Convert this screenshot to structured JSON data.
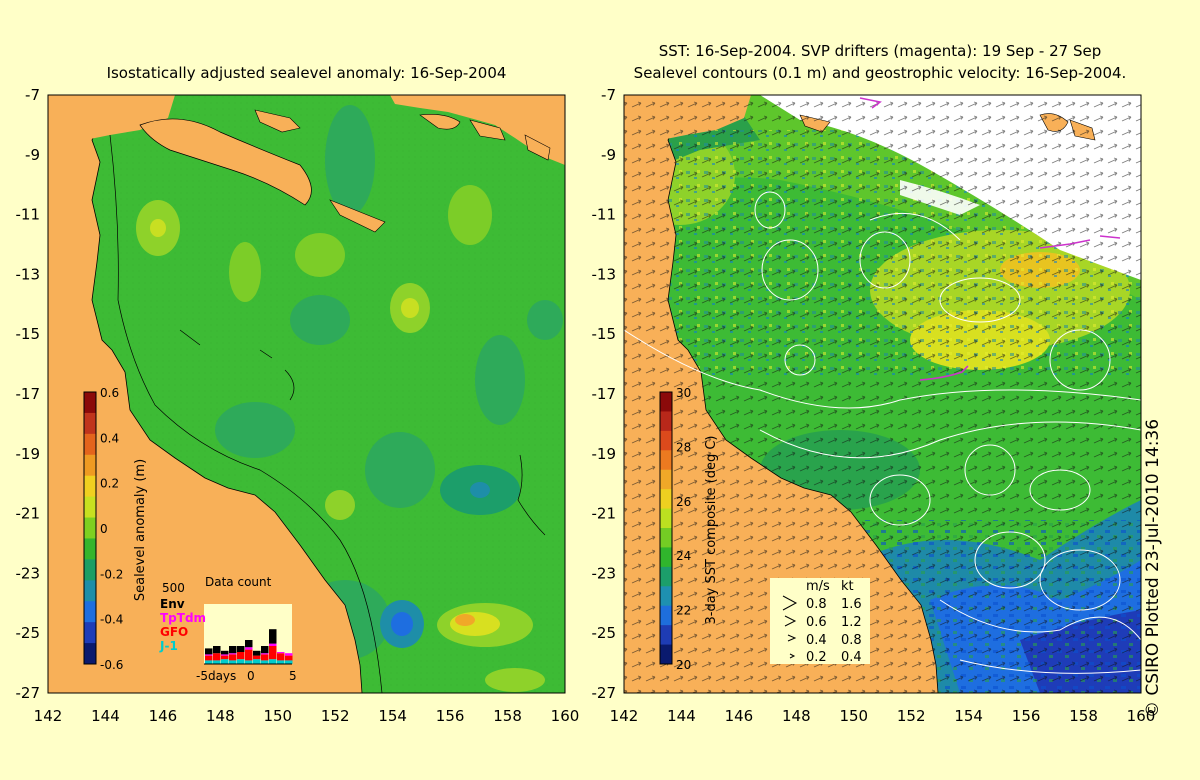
{
  "left_panel": {
    "title": "Isostatically adjusted sealevel anomaly: 16-Sep-2004",
    "colorbar_label": "Sealevel anomaly (m)",
    "colorbar_ticks": [
      "0.6",
      "0.4",
      "0.2",
      "0",
      "-0.2",
      "-0.4",
      "-0.6"
    ],
    "colorbar_colors": [
      "#8b0a0a",
      "#c0341c",
      "#e4641c",
      "#ee9a22",
      "#f0d020",
      "#c8e020",
      "#7ed020",
      "#36b52c",
      "#1c9e64",
      "#1e8ea8",
      "#1e6ee0",
      "#1e3cb8",
      "#0a1a6e"
    ],
    "data_count": {
      "title": "Data count",
      "max_label": "500",
      "legend": [
        {
          "name": "Env",
          "color": "#000000"
        },
        {
          "name": "TpTdm",
          "color": "#ff00ff"
        },
        {
          "name": "GFO",
          "color": "#ff0000"
        },
        {
          "name": "J-1",
          "color": "#00cccc"
        }
      ],
      "x_labels": [
        "-5days",
        "0",
        "5"
      ],
      "bars": [
        {
          "j1": 30,
          "gfo": 40,
          "tp": 10,
          "env": 50
        },
        {
          "j1": 30,
          "gfo": 60,
          "tp": 0,
          "env": 60
        },
        {
          "j1": 40,
          "gfo": 30,
          "tp": 10,
          "env": 30
        },
        {
          "j1": 30,
          "gfo": 50,
          "tp": 10,
          "env": 60
        },
        {
          "j1": 40,
          "gfo": 60,
          "tp": 0,
          "env": 50
        },
        {
          "j1": 30,
          "gfo": 90,
          "tp": 20,
          "env": 60
        },
        {
          "j1": 40,
          "gfo": 30,
          "tp": 0,
          "env": 40
        },
        {
          "j1": 30,
          "gfo": 50,
          "tp": 10,
          "env": 60
        },
        {
          "j1": 40,
          "gfo": 110,
          "tp": 20,
          "env": 120
        },
        {
          "j1": 30,
          "gfo": 60,
          "tp": 10,
          "env": 0
        },
        {
          "j1": 30,
          "gfo": 40,
          "tp": 20,
          "env": 0
        }
      ]
    }
  },
  "right_panel": {
    "title_line1": "SST: 16-Sep-2004. SVP drifters (magenta): 19 Sep - 27 Sep",
    "title_line2": "Sealevel contours (0.1 m) and geostrophic velocity: 16-Sep-2004.",
    "colorbar_label": "3-day SST composite (deg C)",
    "colorbar_ticks": [
      "30",
      "28",
      "26",
      "24",
      "22",
      "20"
    ],
    "colorbar_colors": [
      "#8b0a0a",
      "#b8281a",
      "#dc4a1c",
      "#ec7a20",
      "#f0a828",
      "#eed020",
      "#bce020",
      "#74cc24",
      "#30b52c",
      "#1c9e6a",
      "#1e90b0",
      "#1e6edc",
      "#1e3cb4",
      "#0a1a6e"
    ],
    "velocity_legend": {
      "headers": [
        "m/s",
        "kt"
      ],
      "rows": [
        [
          "0.8",
          "1.6"
        ],
        [
          "0.6",
          "1.2"
        ],
        [
          "0.4",
          "0.8"
        ],
        [
          "0.2",
          "0.4"
        ]
      ]
    }
  },
  "axes": {
    "lat_labels": [
      "-7",
      "-9",
      "-11",
      "-13",
      "-15",
      "-17",
      "-19",
      "-21",
      "-23",
      "-25",
      "-27"
    ],
    "lon_labels": [
      "142",
      "144",
      "146",
      "148",
      "150",
      "152",
      "154",
      "156",
      "158",
      "160"
    ]
  },
  "colors": {
    "background": "#ffffc8",
    "land": "#f8b058",
    "sea_green": "#3dbb35",
    "drifter": "#cc33cc"
  },
  "credit": "© CSIRO Plotted 23-Jul-2010 14:36"
}
